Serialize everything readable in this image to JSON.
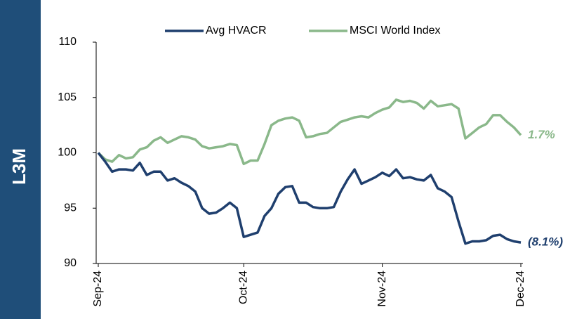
{
  "chart_data": {
    "type": "line",
    "side_label": "L3M",
    "categories": [
      "Sep-24",
      null,
      null,
      null,
      null,
      null,
      null,
      null,
      null,
      null,
      null,
      null,
      null,
      null,
      null,
      null,
      null,
      null,
      null,
      null,
      null,
      "Oct-24",
      null,
      null,
      null,
      null,
      null,
      null,
      null,
      null,
      null,
      null,
      null,
      null,
      null,
      null,
      null,
      null,
      null,
      null,
      null,
      "Nov-24",
      null,
      null,
      null,
      null,
      null,
      null,
      null,
      null,
      null,
      null,
      null,
      null,
      null,
      null,
      null,
      null,
      null,
      null,
      null,
      "Dec-24"
    ],
    "series": [
      {
        "name": "Avg HVACR",
        "color": "#1f3f6e",
        "end_label": "(8.1%)",
        "values": [
          100,
          99.2,
          98.3,
          98.5,
          98.5,
          98.4,
          99.1,
          98.0,
          98.3,
          98.3,
          97.5,
          97.7,
          97.3,
          97.0,
          96.5,
          95.0,
          94.5,
          94.6,
          95.0,
          95.5,
          95.0,
          92.4,
          92.6,
          92.8,
          94.3,
          95.0,
          96.3,
          96.9,
          97.0,
          95.5,
          95.5,
          95.1,
          95.0,
          95.0,
          95.1,
          96.5,
          97.6,
          98.5,
          97.2,
          97.5,
          97.8,
          98.2,
          97.9,
          98.5,
          97.7,
          97.8,
          97.6,
          97.5,
          98.0,
          96.8,
          96.5,
          96.0,
          93.8,
          91.8,
          92.0,
          92.0,
          92.1,
          92.5,
          92.6,
          92.2,
          92.0,
          91.9
        ]
      },
      {
        "name": "MSCI World Index",
        "color": "#8ab88a",
        "end_label": "1.7%",
        "values": [
          100,
          99.4,
          99.2,
          99.8,
          99.5,
          99.6,
          100.3,
          100.5,
          101.1,
          101.4,
          100.9,
          101.2,
          101.5,
          101.4,
          101.2,
          100.6,
          100.4,
          100.5,
          100.6,
          100.8,
          100.7,
          99.0,
          99.3,
          99.3,
          100.8,
          102.5,
          102.9,
          103.1,
          103.2,
          102.9,
          101.4,
          101.5,
          101.7,
          101.8,
          102.3,
          102.8,
          103.0,
          103.2,
          103.3,
          103.2,
          103.6,
          103.9,
          104.1,
          104.8,
          104.6,
          104.7,
          104.5,
          104.0,
          104.7,
          104.2,
          104.3,
          104.4,
          104.0,
          101.3,
          101.8,
          102.3,
          102.6,
          103.4,
          103.4,
          102.8,
          102.3,
          101.6
        ]
      }
    ],
    "ylim": [
      90,
      110
    ],
    "yticks": [
      90,
      95,
      100,
      105,
      110
    ],
    "grid": false,
    "legend": "top"
  }
}
